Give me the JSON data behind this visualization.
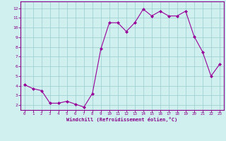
{
  "x": [
    0,
    1,
    2,
    3,
    4,
    5,
    6,
    7,
    8,
    9,
    10,
    11,
    12,
    13,
    14,
    15,
    16,
    17,
    18,
    19,
    20,
    21,
    22,
    23
  ],
  "y": [
    4.1,
    3.7,
    3.5,
    2.2,
    2.2,
    2.4,
    2.1,
    1.8,
    3.2,
    7.8,
    10.5,
    10.5,
    9.6,
    10.5,
    11.9,
    11.2,
    11.7,
    11.2,
    11.2,
    11.7,
    9.1,
    7.5,
    5.0,
    6.2
  ],
  "line_color": "#990099",
  "marker": "D",
  "marker_size": 2,
  "bg_color": "#d0f0f0",
  "grid_color": "#99cccc",
  "xlabel": "Windchill (Refroidissement éolien,°C)",
  "xlim": [
    -0.5,
    23.5
  ],
  "ylim": [
    1.5,
    12.7
  ],
  "yticks": [
    2,
    3,
    4,
    5,
    6,
    7,
    8,
    9,
    10,
    11,
    12
  ],
  "xticks": [
    0,
    1,
    2,
    3,
    4,
    5,
    6,
    7,
    8,
    9,
    10,
    11,
    12,
    13,
    14,
    15,
    16,
    17,
    18,
    19,
    20,
    21,
    22,
    23
  ],
  "tick_color": "#880088",
  "label_color": "#880088",
  "spine_color": "#880088"
}
